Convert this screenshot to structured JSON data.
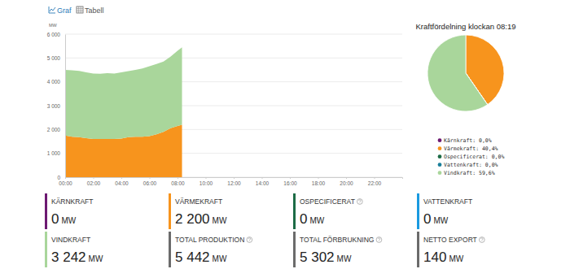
{
  "header": {
    "tabs": [
      "Graf",
      "Tabell"
    ]
  },
  "chart_data": [
    {
      "type": "area",
      "stacked": true,
      "ylabel": "MW",
      "x": [
        0,
        0.5,
        1,
        1.5,
        2,
        2.5,
        3,
        3.5,
        4,
        4.5,
        5,
        5.5,
        6,
        6.5,
        7,
        7.5,
        8,
        8.32
      ],
      "xlim": [
        0,
        24
      ],
      "xticks": [
        {
          "value": 0,
          "label": "00:00"
        },
        {
          "value": 2,
          "label": "02:00"
        },
        {
          "value": 4,
          "label": "04:00"
        },
        {
          "value": 6,
          "label": "06:00"
        },
        {
          "value": 8,
          "label": "08:00"
        },
        {
          "value": 10,
          "label": "10:00"
        },
        {
          "value": 12,
          "label": "12:00"
        },
        {
          "value": 14,
          "label": "14:00"
        },
        {
          "value": 16,
          "label": "16:00"
        },
        {
          "value": 18,
          "label": "18:00"
        },
        {
          "value": 20,
          "label": "20:00"
        },
        {
          "value": 22,
          "label": "22:00"
        }
      ],
      "ylim": [
        0,
        6000
      ],
      "yticks": [
        0,
        {
          "value": 1000,
          "label": "1 000"
        },
        {
          "value": 2000,
          "label": "2 000"
        },
        {
          "value": 3000,
          "label": "3 000"
        },
        {
          "value": 4000,
          "label": "4 000"
        },
        {
          "value": 5000,
          "label": "5 000"
        },
        {
          "value": 6000,
          "label": "6 000"
        }
      ],
      "grid": true,
      "series": [
        {
          "color": "#f7941d",
          "values": [
            1750,
            1700,
            1680,
            1640,
            1600,
            1600,
            1600,
            1600,
            1620,
            1680,
            1700,
            1700,
            1720,
            1800,
            1900,
            2050,
            2150,
            2200
          ]
        },
        {
          "color": "#a9d69b",
          "values": [
            2750,
            2780,
            2780,
            2760,
            2750,
            2740,
            2760,
            2750,
            2780,
            2770,
            2800,
            2860,
            2930,
            2950,
            2950,
            3000,
            3150,
            3242
          ]
        }
      ]
    },
    {
      "type": "pie",
      "title": "Kraftfördelning klockan 08:19",
      "categories": [
        "Kärnkraft: 0,0%",
        "Värmekraft: 40,4%",
        "Ospecificerat: 0,0%",
        "Vattenkraft: 0,0%",
        "Vindkraft: 59,6%"
      ],
      "values": [
        0,
        40.4,
        0,
        0,
        59.6
      ],
      "colors": [
        "#6d1a72",
        "#f7941d",
        "#1d6b46",
        "#1a7f9a",
        "#a9d69b"
      ],
      "legend": "bottom"
    }
  ],
  "tiles": [
    {
      "label": "KÄRNKRAFT",
      "value": "0",
      "unit": "MW",
      "color": "#6d1a72",
      "help": false
    },
    {
      "label": "VÄRMEKRAFT",
      "value": "2 200",
      "unit": "MW",
      "color": "#f7941d",
      "help": false
    },
    {
      "label": "OSPECIFICERAT",
      "value": "0",
      "unit": "MW",
      "color": "#1d6b46",
      "help": true
    },
    {
      "label": "VATTENKRAFT",
      "value": "0",
      "unit": "MW",
      "color": "#1a9ae0",
      "help": false
    },
    {
      "label": "VINDKRAFT",
      "value": "3 242",
      "unit": "MW",
      "color": "#a9d69b",
      "help": false
    },
    {
      "label": "TOTAL PRODUKTION",
      "value": "5 442",
      "unit": "MW",
      "color": "#6b6b6b",
      "help": true
    },
    {
      "label": "TOTAL FÖRBRUKNING",
      "value": "5 302",
      "unit": "MW",
      "color": "#6b6b6b",
      "help": true
    },
    {
      "label": "NETTO EXPORT",
      "value": "140",
      "unit": "MW",
      "color": "#6b6b6b",
      "help": true
    }
  ]
}
